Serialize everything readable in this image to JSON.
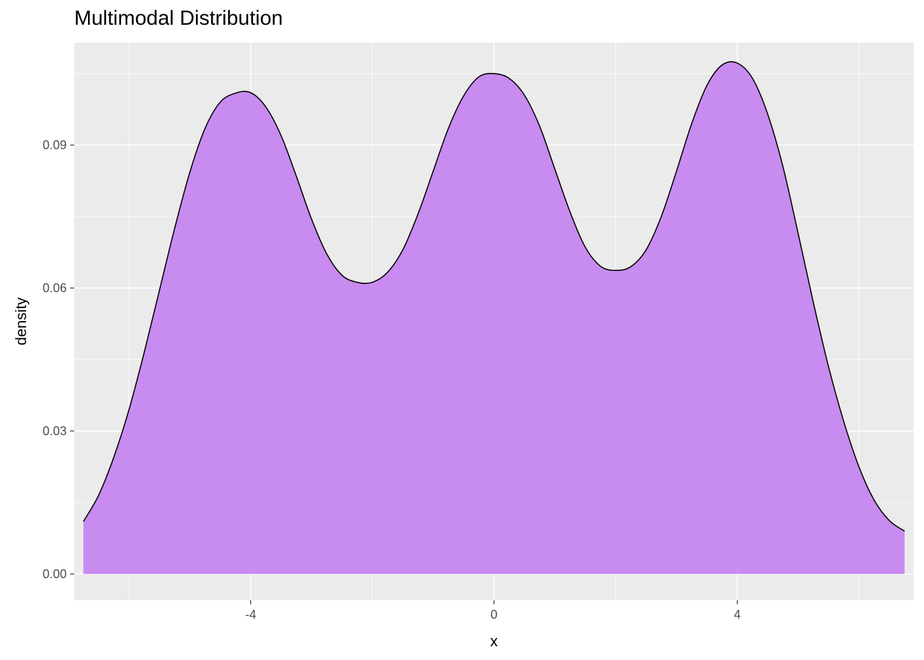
{
  "chart_data": {
    "type": "area",
    "title": "Multimodal Distribution",
    "xlabel": "x",
    "ylabel": "density",
    "xlim": [
      -6.9,
      6.9
    ],
    "ylim": [
      -0.0055,
      0.1115
    ],
    "x_ticks": [
      -4,
      0,
      4
    ],
    "x_tick_labels": [
      "-4",
      "0",
      "4"
    ],
    "y_ticks": [
      0.0,
      0.03,
      0.06,
      0.09
    ],
    "y_tick_labels": [
      "0.00",
      "0.03",
      "0.06",
      "0.09"
    ],
    "grid": true,
    "legend": "none",
    "fill_color": "#c482f0",
    "line_color": "#000000",
    "panel_color": "#ebebeb",
    "series": [
      {
        "x": [
          -6.75,
          -6.5,
          -6.25,
          -6.0,
          -5.75,
          -5.5,
          -5.25,
          -5.0,
          -4.75,
          -4.5,
          -4.25,
          -4.0,
          -3.75,
          -3.5,
          -3.25,
          -3.0,
          -2.75,
          -2.5,
          -2.25,
          -2.0,
          -1.75,
          -1.5,
          -1.25,
          -1.0,
          -0.75,
          -0.5,
          -0.25,
          0.0,
          0.25,
          0.5,
          0.75,
          1.0,
          1.25,
          1.5,
          1.75,
          2.0,
          2.25,
          2.5,
          2.75,
          3.0,
          3.25,
          3.5,
          3.75,
          4.0,
          4.25,
          4.5,
          4.75,
          5.0,
          5.25,
          5.5,
          5.75,
          6.0,
          6.25,
          6.5,
          6.75
        ],
        "y": [
          0.011,
          0.0165,
          0.0245,
          0.0345,
          0.0465,
          0.0595,
          0.0725,
          0.0843,
          0.0935,
          0.099,
          0.1009,
          0.101,
          0.098,
          0.092,
          0.0835,
          0.0745,
          0.0672,
          0.0627,
          0.0612,
          0.0612,
          0.0633,
          0.068,
          0.0755,
          0.0845,
          0.0935,
          0.1003,
          0.1043,
          0.105,
          0.104,
          0.1005,
          0.094,
          0.085,
          0.076,
          0.0686,
          0.0646,
          0.0637,
          0.0645,
          0.068,
          0.075,
          0.0845,
          0.0945,
          0.1025,
          0.1068,
          0.1072,
          0.104,
          0.0965,
          0.0855,
          0.0715,
          0.057,
          0.0435,
          0.032,
          0.0225,
          0.0155,
          0.0112,
          0.009
        ]
      }
    ]
  }
}
